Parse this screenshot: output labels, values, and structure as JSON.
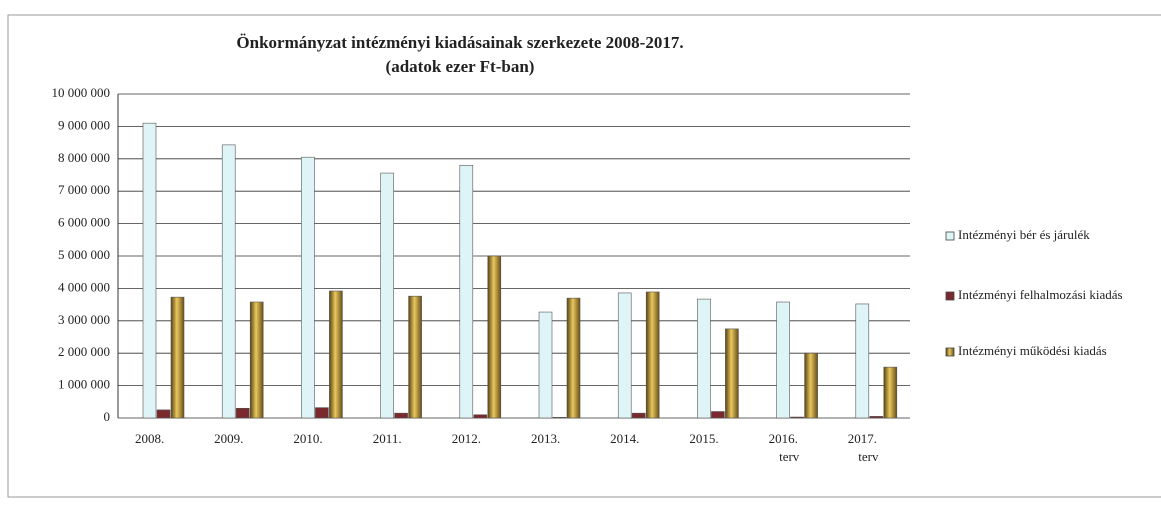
{
  "chart_data": {
    "type": "bar",
    "title": "Önkormányzat intézményi kiadásainak szerkezete 2008-2017.",
    "subtitle": "(adatok ezer Ft-ban)",
    "categories": [
      "2008.",
      "2009.",
      "2010.",
      "2011.",
      "2012.",
      "2013.",
      "2014.",
      "2015.",
      "2016.\nterv",
      "2017.\nterv"
    ],
    "series": [
      {
        "name": "Intézményi bér és járulék",
        "color": "#dff4f7",
        "values": [
          9100000,
          8430000,
          8050000,
          7560000,
          7800000,
          3270000,
          3860000,
          3670000,
          3580000,
          3520000
        ]
      },
      {
        "name": "Intézményi felhalmozási kiadás",
        "color": "#7a2a2e",
        "values": [
          250000,
          300000,
          320000,
          150000,
          100000,
          20000,
          150000,
          200000,
          30000,
          50000
        ]
      },
      {
        "name": "Intézményi működési kiadás",
        "color": "#b8902a",
        "values": [
          3730000,
          3580000,
          3920000,
          3760000,
          5000000,
          3700000,
          3890000,
          2750000,
          2000000,
          1570000
        ]
      }
    ],
    "ylim": [
      0,
      10000000
    ],
    "yticks": [
      0,
      {
        "value": 1000000,
        "label": "1 000 000"
      },
      {
        "value": 2000000,
        "label": "2 000 000"
      },
      {
        "value": 3000000,
        "label": "3 000 000"
      },
      {
        "value": 4000000,
        "label": "4 000 000"
      },
      {
        "value": 5000000,
        "label": "5 000 000"
      },
      {
        "value": 6000000,
        "label": "6 000 000"
      },
      {
        "value": 7000000,
        "label": "7 000 000"
      },
      {
        "value": 8000000,
        "label": "8 000 000"
      },
      {
        "value": 9000000,
        "label": "9 000 000"
      },
      {
        "value": 10000000,
        "label": "10 000 000"
      }
    ],
    "grid": true,
    "legend": "right"
  }
}
